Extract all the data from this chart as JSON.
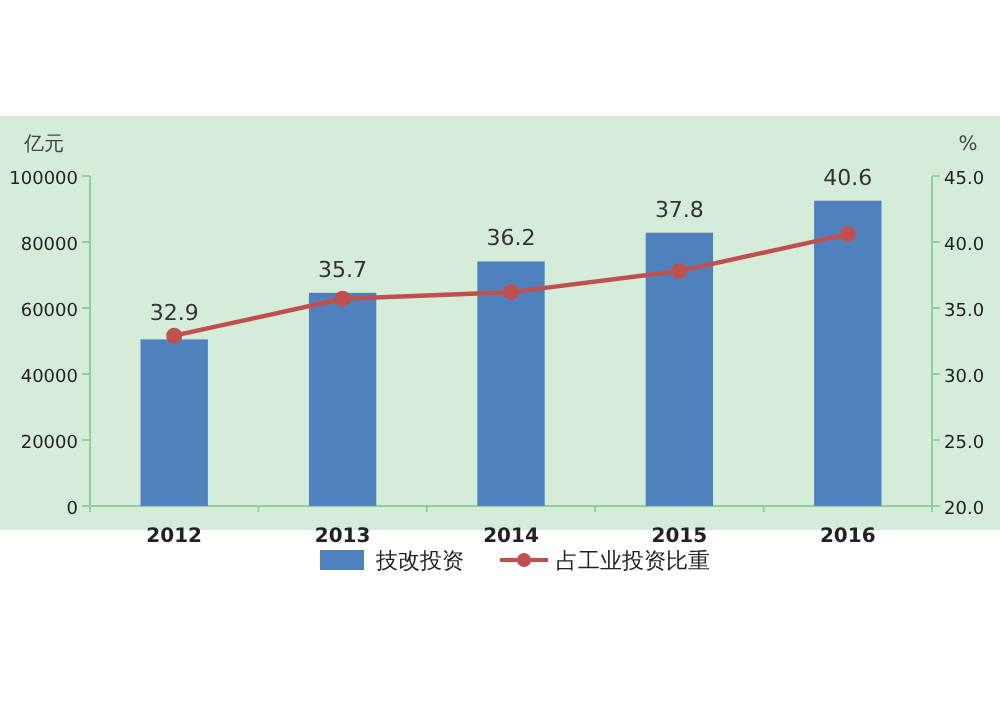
{
  "chart_data": {
    "type": "bar",
    "ylabel": "亿元",
    "y2label": "%",
    "categories": [
      "2012",
      "2013",
      "2014",
      "2015",
      "2016"
    ],
    "series": [
      {
        "name": "技改投资",
        "color": "#4f81bd",
        "values": [
          50500,
          64600,
          74100,
          82800,
          92500
        ]
      },
      {
        "name": "占工业投资比重",
        "type": "line",
        "axis": "y2",
        "color": "#c0504d",
        "marker": "circle",
        "values": [
          32.9,
          35.7,
          36.2,
          37.8,
          40.6
        ],
        "value_labels": [
          "32.9",
          "35.7",
          "36.2",
          "37.8",
          "40.6"
        ]
      }
    ],
    "ylim": [
      0,
      100000
    ],
    "yticks": [
      0,
      20000,
      40000,
      60000,
      80000,
      100000
    ],
    "y2lim": [
      20,
      45
    ],
    "y2ticks": [
      {
        "value": 20,
        "label": "20.0"
      },
      {
        "value": 25,
        "label": "25.0"
      },
      {
        "value": 30,
        "label": "30.0"
      },
      {
        "value": 35,
        "label": "35.0"
      },
      {
        "value": 40,
        "label": "40.0"
      },
      {
        "value": 45,
        "label": "45.0"
      }
    ],
    "legend": "bottom",
    "grid": false
  }
}
